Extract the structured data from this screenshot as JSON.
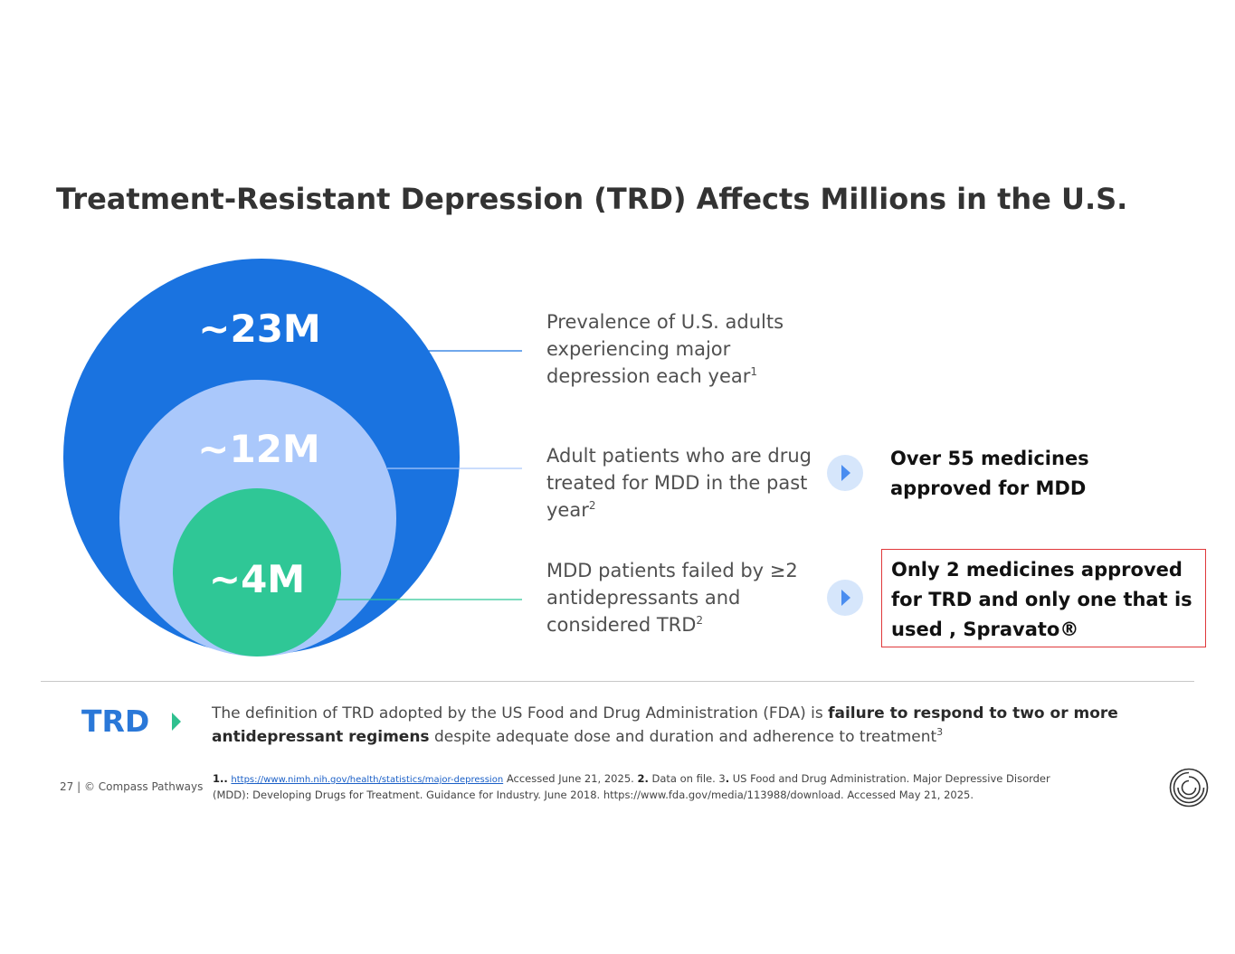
{
  "title": "Treatment-Resistant Depression (TRD) Affects Millions in the U.S.",
  "circles": {
    "outer_label": "~23M",
    "middle_label": "~12M",
    "inner_label": "~4M"
  },
  "colors": {
    "outer": "#1a73e0",
    "middle": "#aac8fb",
    "inner": "#2fc796",
    "title": "#333333",
    "trd_label": "#2a78d8",
    "callout_border": "#e0393b"
  },
  "descriptions": {
    "d1_text": "Prevalence of U.S. adults experiencing major depression each year",
    "d1_ref": "1",
    "d2_text": "Adult patients who are drug treated for MDD in the past year",
    "d2_ref": "2",
    "d3_text": "MDD patients failed by ≥2 antidepressants and considered TRD",
    "d3_ref": "2"
  },
  "callouts": {
    "mdd": "Over 55 medicines approved for MDD",
    "trd": "Only 2 medicines approved for TRD and only one that is used , Spravato®"
  },
  "trd_section": {
    "label": "TRD",
    "def_part1": "The definition of TRD adopted by the US Food and Drug Administration (FDA) is ",
    "def_bold": "failure to respond to two or more antidepressant regimens",
    "def_part2": " despite adequate dose and duration and adherence to treatment",
    "def_ref": "3"
  },
  "footer": {
    "page": "27 | © Compass Pathways",
    "fn1_num": "1..",
    "fn1_link": "https://www.nimh.nih.gov/health/statistics/major-depression",
    "fn1_rest": " Accessed June 21, 2025. ",
    "fn2_num": "2.",
    "fn2_text": " Data on file.  3",
    "fn3_num": ".",
    "fn3_text": " US Food and Drug Administration. Major Depressive Disorder (MDD): Developing Drugs for Treatment. Guidance for Industry. June 2018. https://www.fda.gov/media/113988/download. Accessed May 21, 2025."
  }
}
